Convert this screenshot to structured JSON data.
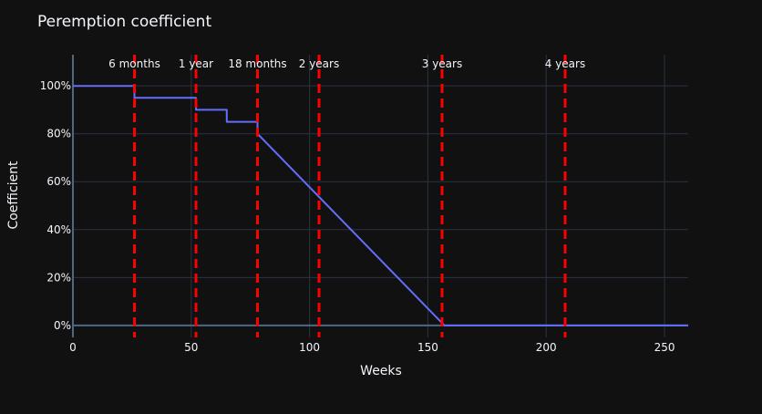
{
  "chart_data": {
    "type": "line",
    "title": "Peremption coefficient",
    "xlabel": "Weeks",
    "ylabel": "Coefficient",
    "xlim": [
      0,
      260
    ],
    "ylim": [
      -5,
      113
    ],
    "x_ticks": [
      0,
      50,
      100,
      150,
      200,
      250
    ],
    "y_ticks": [
      0,
      20,
      40,
      60,
      80,
      100
    ],
    "y_tick_suffix": "%",
    "grid": true,
    "series": [
      {
        "color": "#636efa",
        "x": [
          0,
          26,
          26,
          52,
          52,
          65,
          65,
          78,
          78,
          157,
          157,
          260
        ],
        "y": [
          100,
          100,
          95,
          95,
          90,
          90,
          85,
          85,
          80,
          0,
          0,
          0
        ]
      }
    ],
    "vlines": [
      {
        "x": 26,
        "label": "6 months"
      },
      {
        "x": 52,
        "label": "1 year"
      },
      {
        "x": 78,
        "label": "18 months"
      },
      {
        "x": 104,
        "label": "2 years"
      },
      {
        "x": 156,
        "label": "3 years"
      },
      {
        "x": 208,
        "label": "4 years"
      }
    ],
    "vline_color": "#ff0000",
    "background": "#111111",
    "grid_color": "#283442"
  }
}
